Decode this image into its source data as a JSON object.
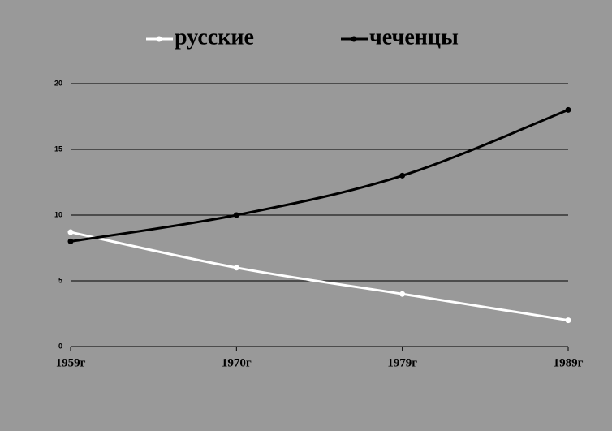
{
  "chart_data": {
    "type": "line",
    "categories": [
      "1959г",
      "1970г",
      "1979г",
      "1989г"
    ],
    "series": [
      {
        "name": "русские",
        "color": "#ffffff",
        "values": [
          8.7,
          6,
          4,
          2
        ]
      },
      {
        "name": "чеченцы",
        "color": "#000000",
        "values": [
          8,
          10,
          13,
          18
        ]
      }
    ],
    "ylim": [
      0,
      20
    ],
    "yticks": [
      0,
      5,
      10,
      15,
      20
    ],
    "grid": true,
    "legend": "top"
  }
}
